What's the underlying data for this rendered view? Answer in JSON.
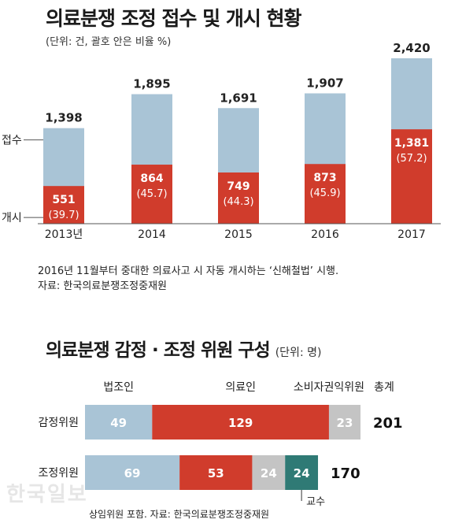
{
  "chart_data": [
    {
      "type": "bar",
      "title": "의료분쟁 조정 접수 및 개시 현황",
      "subtitle": "(단위: 건, 괄호 안은 비율 %)",
      "categories": [
        "2013년",
        "2014",
        "2015",
        "2016",
        "2017"
      ],
      "series": [
        {
          "name": "접수",
          "values": [
            1398,
            1895,
            1691,
            1907,
            2420
          ],
          "labels": [
            "1,398",
            "1,895",
            "1,691",
            "1,907",
            "2,420"
          ],
          "color": "#a9c4d6"
        },
        {
          "name": "개시",
          "values": [
            551,
            864,
            749,
            873,
            1381
          ],
          "labels": [
            "551",
            "864",
            "749",
            "873",
            "1,381"
          ],
          "ratios": [
            "(39.7)",
            "(45.7)",
            "(44.3)",
            "(45.9)",
            "(57.2)"
          ],
          "color": "#d03c2c"
        }
      ],
      "ylim": [
        0,
        2420
      ],
      "notes": [
        "2016년 11월부터 중대한 의료사고 시 자동 개시하는 ‘신해철법’ 시행.",
        "자료: 한국의료분쟁조정중재원"
      ]
    },
    {
      "type": "bar",
      "orientation": "horizontal-stacked",
      "title": "의료분쟁 감정 · 조정 위원 구성",
      "unit": "(단위: 명)",
      "categories": [
        "감정위원",
        "조정위원"
      ],
      "segments": [
        "법조인",
        "의료인",
        "소비자권익위원",
        "교수"
      ],
      "segment_colors": [
        "#a9c4d6",
        "#d03c2c",
        "#c4c4c4",
        "#2f7a75"
      ],
      "values": [
        [
          49,
          129,
          23,
          0
        ],
        [
          69,
          53,
          24,
          24
        ]
      ],
      "totals": [
        201,
        170
      ],
      "total_label": "총계",
      "footnote": "상임위원 포함. 자료: 한국의료분쟁조정중재원"
    }
  ],
  "watermark": "한국일보"
}
